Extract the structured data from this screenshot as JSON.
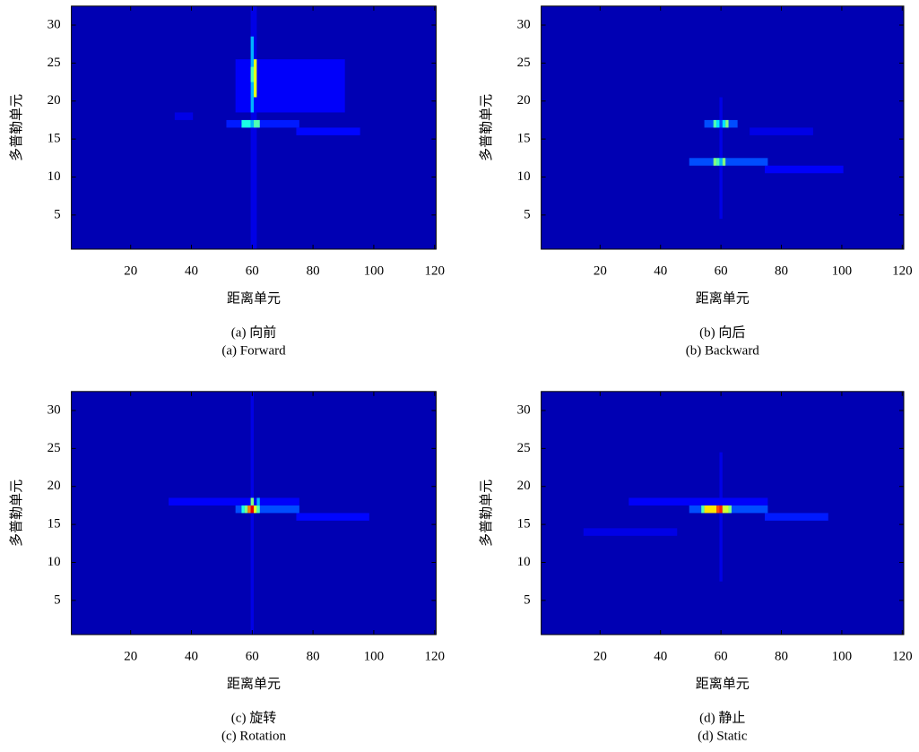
{
  "chart_data": [
    {
      "type": "heatmap",
      "caption": [
        "(a) 向前",
        "(a) Forward"
      ],
      "xlabel": "距离单元",
      "ylabel": "多普勒单元",
      "xlim": [
        0.5,
        120.5
      ],
      "ylim": [
        0.5,
        32.5
      ],
      "xticks": [
        20,
        40,
        60,
        80,
        100,
        120
      ],
      "yticks": [
        5,
        10,
        15,
        20,
        25,
        30
      ],
      "colormap": "jet",
      "background_value": 0.05,
      "patches": [
        {
          "x": [
            60,
            61
          ],
          "y": [
            1,
            32
          ],
          "value": 0.1
        },
        {
          "x": [
            55,
            90
          ],
          "y": [
            19,
            25
          ],
          "value": 0.12
        },
        {
          "x": [
            35,
            40
          ],
          "y": [
            18,
            18
          ],
          "value": 0.1
        },
        {
          "x": [
            75,
            95
          ],
          "y": [
            16,
            16
          ],
          "value": 0.13
        },
        {
          "x": [
            52,
            75
          ],
          "y": [
            17,
            17
          ],
          "value": 0.15
        },
        {
          "x": [
            60,
            60
          ],
          "y": [
            19,
            28
          ],
          "value": 0.3
        },
        {
          "x": [
            61,
            61
          ],
          "y": [
            21,
            25
          ],
          "value": 0.6
        },
        {
          "x": [
            60,
            60
          ],
          "y": [
            23,
            24
          ],
          "value": 0.45
        },
        {
          "x": [
            57,
            59
          ],
          "y": [
            17,
            17
          ],
          "value": 0.4
        },
        {
          "x": [
            60,
            60
          ],
          "y": [
            17,
            17
          ],
          "value": 0.3
        },
        {
          "x": [
            61,
            62
          ],
          "y": [
            17,
            17
          ],
          "value": 0.45
        }
      ]
    },
    {
      "type": "heatmap",
      "caption": [
        "(b) 向后",
        "(b) Backward"
      ],
      "xlabel": "距离单元",
      "ylabel": "多普勒单元",
      "xlim": [
        0.5,
        120.5
      ],
      "ylim": [
        0.5,
        32.5
      ],
      "xticks": [
        20,
        40,
        60,
        80,
        100,
        120
      ],
      "yticks": [
        5,
        10,
        15,
        20,
        25,
        30
      ],
      "colormap": "jet",
      "background_value": 0.05,
      "patches": [
        {
          "x": [
            60,
            60
          ],
          "y": [
            5,
            20
          ],
          "value": 0.1
        },
        {
          "x": [
            70,
            90
          ],
          "y": [
            16,
            16
          ],
          "value": 0.1
        },
        {
          "x": [
            75,
            100
          ],
          "y": [
            11,
            11
          ],
          "value": 0.12
        },
        {
          "x": [
            55,
            65
          ],
          "y": [
            17,
            17
          ],
          "value": 0.2
        },
        {
          "x": [
            50,
            75
          ],
          "y": [
            12,
            12
          ],
          "value": 0.2
        },
        {
          "x": [
            58,
            58
          ],
          "y": [
            17,
            17
          ],
          "value": 0.45
        },
        {
          "x": [
            59,
            59
          ],
          "y": [
            17,
            17
          ],
          "value": 0.35
        },
        {
          "x": [
            61,
            61
          ],
          "y": [
            17,
            17
          ],
          "value": 0.35
        },
        {
          "x": [
            62,
            62
          ],
          "y": [
            17,
            17
          ],
          "value": 0.5
        },
        {
          "x": [
            58,
            58
          ],
          "y": [
            12,
            12
          ],
          "value": 0.5
        },
        {
          "x": [
            59,
            59
          ],
          "y": [
            12,
            12
          ],
          "value": 0.45
        },
        {
          "x": [
            60,
            60
          ],
          "y": [
            12,
            12
          ],
          "value": 0.3
        },
        {
          "x": [
            61,
            61
          ],
          "y": [
            12,
            12
          ],
          "value": 0.5
        }
      ]
    },
    {
      "type": "heatmap",
      "caption": [
        "(c) 旋转",
        "(c) Rotation"
      ],
      "xlabel": "距离单元",
      "ylabel": "多普勒单元",
      "xlim": [
        0.5,
        120.5
      ],
      "ylim": [
        0.5,
        32.5
      ],
      "xticks": [
        20,
        40,
        60,
        80,
        100,
        120
      ],
      "yticks": [
        5,
        10,
        15,
        20,
        25,
        30
      ],
      "colormap": "jet",
      "background_value": 0.05,
      "patches": [
        {
          "x": [
            60,
            60
          ],
          "y": [
            1,
            32
          ],
          "value": 0.1
        },
        {
          "x": [
            33,
            75
          ],
          "y": [
            18,
            18
          ],
          "value": 0.12
        },
        {
          "x": [
            75,
            98
          ],
          "y": [
            16,
            16
          ],
          "value": 0.13
        },
        {
          "x": [
            55,
            75
          ],
          "y": [
            17,
            17
          ],
          "value": 0.2
        },
        {
          "x": [
            57,
            57
          ],
          "y": [
            17,
            17
          ],
          "value": 0.4
        },
        {
          "x": [
            58,
            58
          ],
          "y": [
            17,
            17
          ],
          "value": 0.5
        },
        {
          "x": [
            59,
            59
          ],
          "y": [
            17,
            17
          ],
          "value": 0.75
        },
        {
          "x": [
            60,
            60
          ],
          "y": [
            17,
            17
          ],
          "value": 0.9
        },
        {
          "x": [
            61,
            61
          ],
          "y": [
            17,
            17
          ],
          "value": 0.6
        },
        {
          "x": [
            62,
            62
          ],
          "y": [
            17,
            17
          ],
          "value": 0.45
        },
        {
          "x": [
            60,
            60
          ],
          "y": [
            18,
            18
          ],
          "value": 0.5
        },
        {
          "x": [
            62,
            62
          ],
          "y": [
            18,
            18
          ],
          "value": 0.3
        }
      ]
    },
    {
      "type": "heatmap",
      "caption": [
        "(d) 静止",
        "(d) Static"
      ],
      "xlabel": "距离单元",
      "ylabel": "多普勒单元",
      "xlim": [
        0.5,
        120.5
      ],
      "ylim": [
        0.5,
        32.5
      ],
      "xticks": [
        20,
        40,
        60,
        80,
        100,
        120
      ],
      "yticks": [
        5,
        10,
        15,
        20,
        25,
        30
      ],
      "colormap": "jet",
      "background_value": 0.05,
      "patches": [
        {
          "x": [
            60,
            60
          ],
          "y": [
            8,
            24
          ],
          "value": 0.1
        },
        {
          "x": [
            30,
            75
          ],
          "y": [
            18,
            18
          ],
          "value": 0.12
        },
        {
          "x": [
            15,
            45
          ],
          "y": [
            14,
            14
          ],
          "value": 0.1
        },
        {
          "x": [
            75,
            95
          ],
          "y": [
            16,
            16
          ],
          "value": 0.15
        },
        {
          "x": [
            50,
            75
          ],
          "y": [
            17,
            17
          ],
          "value": 0.2
        },
        {
          "x": [
            54,
            54
          ],
          "y": [
            17,
            17
          ],
          "value": 0.45
        },
        {
          "x": [
            55,
            58
          ],
          "y": [
            17,
            17
          ],
          "value": 0.65
        },
        {
          "x": [
            59,
            59
          ],
          "y": [
            17,
            17
          ],
          "value": 0.8
        },
        {
          "x": [
            60,
            60
          ],
          "y": [
            17,
            17
          ],
          "value": 0.85
        },
        {
          "x": [
            61,
            62
          ],
          "y": [
            17,
            17
          ],
          "value": 0.58
        },
        {
          "x": [
            63,
            63
          ],
          "y": [
            17,
            17
          ],
          "value": 0.5
        }
      ]
    }
  ]
}
